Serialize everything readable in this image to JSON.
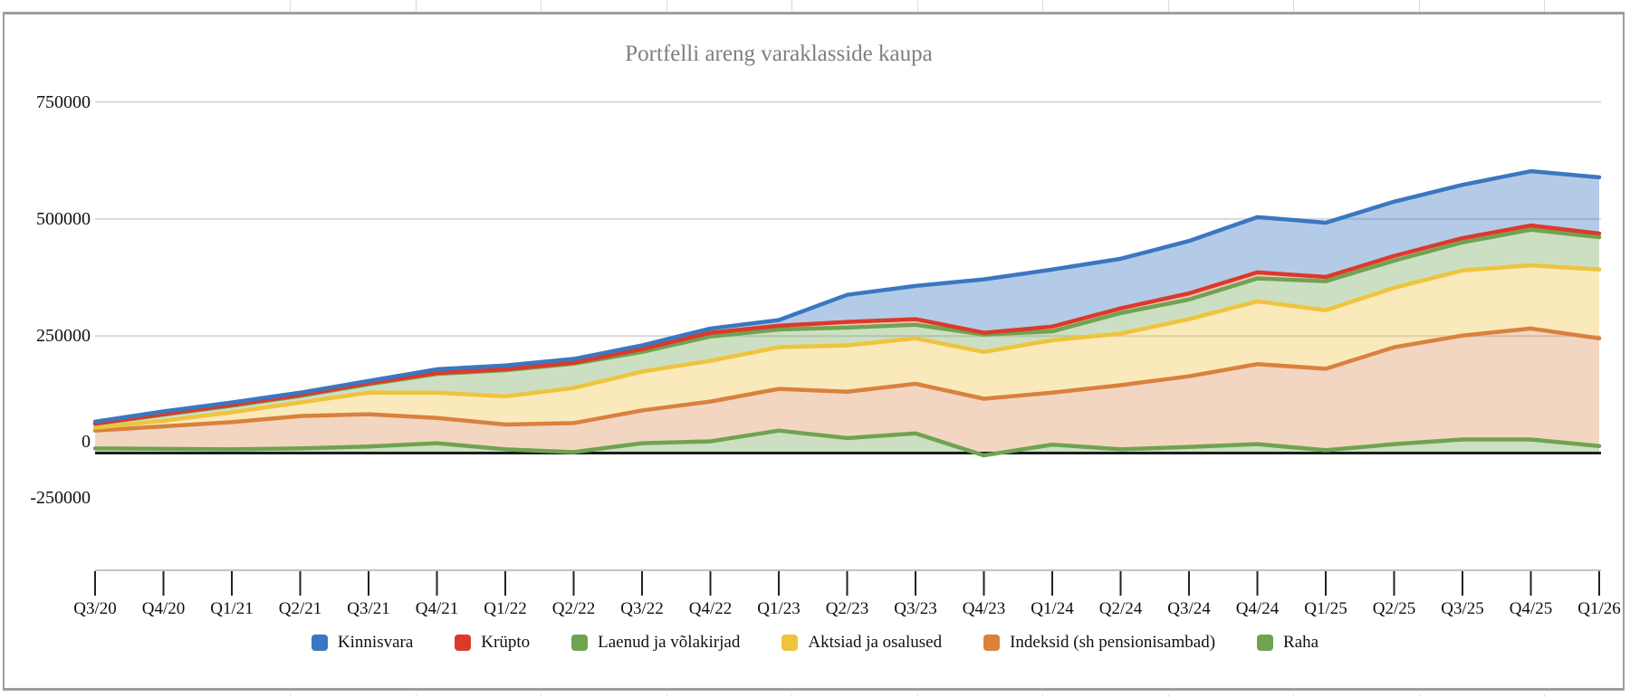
{
  "chart": {
    "title": "Portfelli areng varaklasside kaupa"
  },
  "chart_data": {
    "type": "area",
    "stacked": true,
    "title": "Portfelli areng varaklasside kaupa",
    "grid": true,
    "legend_position": "bottom",
    "ylim": [
      -250000,
      750000
    ],
    "categories": [
      "Q3/20",
      "Q4/20",
      "Q1/21",
      "Q2/21",
      "Q3/21",
      "Q4/21",
      "Q1/22",
      "Q2/22",
      "Q3/22",
      "Q4/22",
      "Q1/23",
      "Q2/23",
      "Q3/23",
      "Q4/23",
      "Q1/24",
      "Q2/24",
      "Q3/24",
      "Q4/24",
      "Q1/25",
      "Q2/25",
      "Q3/25",
      "Q4/25",
      "Q1/26"
    ],
    "y_axis": {
      "ticks": [
        {
          "label": "750000",
          "value": 750000
        },
        {
          "label": "500000",
          "value": 500000
        },
        {
          "label": "250000",
          "value": 250000
        },
        {
          "label": "0",
          "value": 0
        },
        {
          "label": "-250000",
          "value": -250000
        }
      ]
    },
    "series": [
      {
        "name": "Raha",
        "color": "#6fa351",
        "fill": "rgba(111,163,81,0.35)",
        "values": [
          10000,
          9000,
          8000,
          10000,
          14000,
          21000,
          8000,
          2000,
          21000,
          25000,
          48000,
          32000,
          42000,
          -5000,
          18000,
          8000,
          13000,
          19000,
          6000,
          19000,
          29000,
          29000,
          15000
        ]
      },
      {
        "name": "Indeksid (sh pensionisambad)",
        "color": "#d9813e",
        "fill": "rgba(217,129,62,0.32)",
        "values": [
          38000,
          48000,
          58000,
          69000,
          69000,
          54000,
          53000,
          62000,
          70000,
          85000,
          89000,
          99000,
          106000,
          121000,
          111000,
          137000,
          151000,
          171000,
          174000,
          207000,
          222000,
          237000,
          230000
        ]
      },
      {
        "name": "Aktsiad ja osalused",
        "color": "#f0c33d",
        "fill": "rgba(240,195,61,0.35)",
        "values": [
          6000,
          12000,
          21000,
          29000,
          46000,
          54000,
          60000,
          75000,
          83000,
          87000,
          89000,
          99000,
          97000,
          100000,
          112000,
          110000,
          122000,
          134000,
          125000,
          127000,
          139000,
          135000,
          147000
        ]
      },
      {
        "name": "Laenud ja võlakirjad",
        "color": "#6fa351",
        "fill": "rgba(111,163,81,0.35)",
        "values": [
          8000,
          13000,
          14000,
          14000,
          18000,
          40000,
          56000,
          52000,
          42000,
          52000,
          38000,
          38000,
          29000,
          37000,
          19000,
          44000,
          42000,
          49000,
          62000,
          58000,
          60000,
          76000,
          69000
        ]
      },
      {
        "name": "Krüpto",
        "color": "#dc392a",
        "fill": "rgba(220,57,42,0.30)",
        "values": [
          1000,
          1000,
          2000,
          2000,
          2000,
          2000,
          2000,
          2000,
          6000,
          8000,
          8000,
          12000,
          12000,
          4000,
          10000,
          10000,
          13000,
          13000,
          9000,
          10000,
          9000,
          9000,
          8000
        ]
      },
      {
        "name": "Kinnisvara",
        "color": "#3b77c0",
        "fill": "rgba(59,119,192,0.38)",
        "values": [
          4000,
          6000,
          5000,
          5000,
          5000,
          8000,
          8000,
          8000,
          8000,
          9000,
          12000,
          58000,
          71000,
          114000,
          122000,
          106000,
          112000,
          118000,
          116000,
          116000,
          114000,
          116000,
          120000
        ]
      }
    ],
    "stack_note": "series listed bottom-to-top",
    "legend_order": [
      "Kinnisvara",
      "Krüpto",
      "Laenud ja võlakirjad",
      "Aktsiad ja osalused",
      "Indeksid (sh pensionisambad)",
      "Raha"
    ]
  }
}
